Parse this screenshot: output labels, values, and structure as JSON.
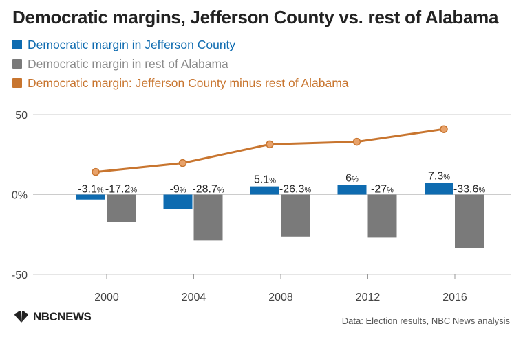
{
  "title": "Democratic margins, Jefferson County vs. rest of Alabama",
  "footer": {
    "logo_text": "NBCNEWS",
    "source": "Data: Election results, NBC News analysis"
  },
  "colors": {
    "jefferson": "#0e6bb0",
    "rest": "#7a7a7a",
    "diff": "#c8752f",
    "axis": "#cccccc"
  },
  "chart_data": {
    "type": "bar",
    "x": [
      "2000",
      "2004",
      "2008",
      "2012",
      "2016"
    ],
    "ylim": [
      -50,
      50
    ],
    "yticks": [
      {
        "value": 50,
        "label": "50"
      },
      {
        "value": 0,
        "label": "0%"
      },
      {
        "value": -50,
        "label": "-50"
      }
    ],
    "series": [
      {
        "name": "Democratic margin in Jefferson County",
        "kind": "bar",
        "values": [
          -3.1,
          -9,
          5.1,
          6,
          7.3
        ],
        "labels": [
          "-3.1",
          "-9",
          "5.1",
          "6",
          "7.3"
        ]
      },
      {
        "name": "Democratic margin in rest of Alabama",
        "kind": "bar",
        "values": [
          -17.2,
          -28.7,
          -26.3,
          -27,
          -33.6
        ],
        "labels": [
          "-17.2",
          "-28.7",
          "-26.3",
          "-27",
          "-33.6"
        ]
      },
      {
        "name": "Democratic margin: Jefferson County minus rest of Alabama",
        "kind": "line",
        "values": [
          14.1,
          19.7,
          31.4,
          33,
          40.9
        ]
      }
    ],
    "label_suffix": "%"
  }
}
